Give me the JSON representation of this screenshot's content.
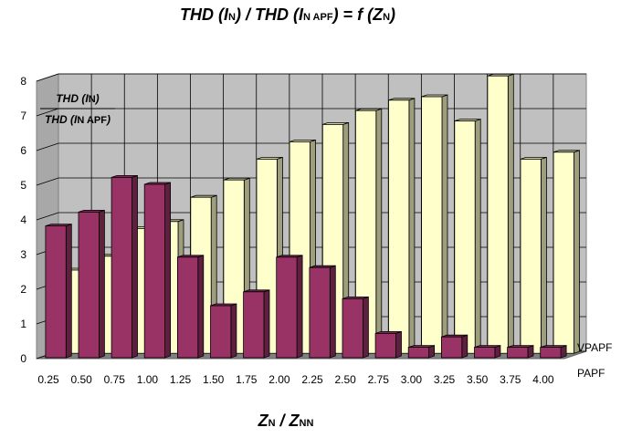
{
  "chart_data": {
    "type": "bar",
    "title": {
      "a": "THD (",
      "b": "I",
      "c": "N",
      "d": ") / THD (",
      "e": "I",
      "f": "N APF",
      "g": ") = f (",
      "h": "Z",
      "i": "N",
      "j": ")"
    },
    "xlabel": {
      "a": "Z",
      "b": "N",
      "c": " / Z",
      "d": "NN"
    },
    "ylabel": {
      "num_a": "THD",
      "num_b": "(I",
      "num_c": "N",
      "num_d": ")",
      "den_a": "THD",
      "den_b": "(I",
      "den_c": "N APF",
      "den_d": ")"
    },
    "ylim": [
      0,
      8
    ],
    "yticks": [
      "0",
      "1",
      "2",
      "3",
      "4",
      "5",
      "6",
      "7",
      "8"
    ],
    "categories": [
      "0.25",
      "0.50",
      "0.75",
      "1.00",
      "1.25",
      "1.50",
      "1.75",
      "2.00",
      "2.25",
      "2.50",
      "2.75",
      "3.00",
      "3.25",
      "3.50",
      "3.75",
      "4.00"
    ],
    "series": [
      {
        "name": "VPAPF",
        "color": "#FFFFCC",
        "values": [
          2.4,
          2.8,
          3.6,
          3.8,
          4.5,
          5.0,
          5.6,
          6.1,
          6.6,
          7.0,
          7.3,
          7.4,
          6.7,
          8.0,
          5.6,
          5.8
        ]
      },
      {
        "name": "PAPF",
        "color": "#993366",
        "values": [
          3.8,
          4.2,
          5.2,
          5.0,
          2.9,
          1.5,
          1.9,
          2.9,
          2.6,
          1.7,
          0.7,
          0.3,
          0.6,
          0.3,
          0.3,
          0.3
        ]
      }
    ],
    "grid": true,
    "legend": "series labels on depth axis (right)"
  }
}
